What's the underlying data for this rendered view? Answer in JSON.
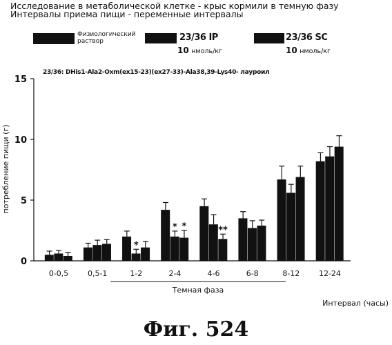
{
  "header": {
    "line1": "Исследование в метаболической клетке - крыс кормили в темную фазу",
    "line2": "Интервалы приема пищи - переменные интервалы"
  },
  "legend": {
    "items": [
      {
        "label_line1": "Физиологический",
        "label_line2": "раствор"
      },
      {
        "label": "23/36 IP",
        "dose_value": "10",
        "dose_unit": "нмоль/кг"
      },
      {
        "label": "23/36 SC",
        "dose_value": "10",
        "dose_unit": "нмоль/кг"
      }
    ]
  },
  "compound_label": "23/36: DHis1-Ala2-Oxm(ex15-23)(ex27-33)-Ala38,39-Lys40- лауроил",
  "figure_caption": "Фиг.  524",
  "chart_data": {
    "type": "bar",
    "ylabel": "потребление пищи (г)",
    "xlabel": "Интервал (часы)",
    "ylim": [
      0,
      15
    ],
    "yticks": [
      "0",
      "5",
      "10",
      "15"
    ],
    "categories": [
      "0-0,5",
      "0,5-1",
      "1-2",
      "2-4",
      "4-6",
      "6-8",
      "8-12",
      "12-24"
    ],
    "bar_color": "#111111",
    "series": [
      {
        "name": "Физиологический раствор",
        "values": [
          0.5,
          1.1,
          2.0,
          4.2,
          4.5,
          3.5,
          6.7,
          8.2
        ],
        "errors": [
          0.3,
          0.35,
          0.45,
          0.6,
          0.6,
          0.55,
          1.1,
          0.7
        ]
      },
      {
        "name": "23/36 IP",
        "values": [
          0.6,
          1.3,
          0.6,
          2.0,
          3.0,
          2.7,
          5.6,
          8.6
        ],
        "errors": [
          0.25,
          0.4,
          0.35,
          0.45,
          0.8,
          0.6,
          0.7,
          0.8
        ]
      },
      {
        "name": "23/36 SC",
        "values": [
          0.4,
          1.4,
          1.1,
          1.9,
          1.8,
          2.9,
          6.9,
          9.4
        ],
        "errors": [
          0.3,
          0.35,
          0.5,
          0.6,
          0.4,
          0.45,
          0.9,
          0.9
        ]
      }
    ],
    "annotations": [
      {
        "category": "1-2",
        "series": 1,
        "text": "*"
      },
      {
        "category": "2-4",
        "series": 1,
        "text": "*"
      },
      {
        "category": "2-4",
        "series": 2,
        "text": "*"
      },
      {
        "category": "4-6",
        "series": 2,
        "text": "**"
      }
    ],
    "bracket_label": "Темная фаза",
    "legend_position": "top",
    "grid": false
  }
}
